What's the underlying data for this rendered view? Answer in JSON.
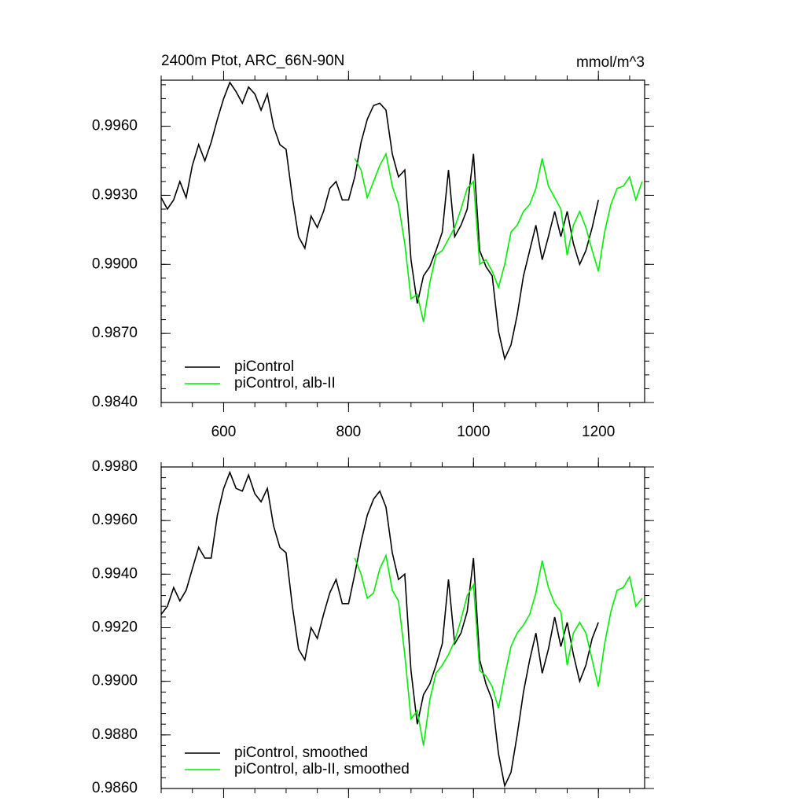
{
  "chart_data": [
    {
      "type": "line",
      "title": "2400m Ptot, ARC_66N-90N",
      "units": "mmol/m^3",
      "xlim": [
        500,
        1274
      ],
      "xticks": [
        600,
        800,
        1000,
        1200
      ],
      "ylim": [
        0.984,
        0.998
      ],
      "yticks": [
        {
          "value": 0.984,
          "label": "0.9840"
        },
        {
          "value": 0.987,
          "label": "0.9870"
        },
        {
          "value": 0.99,
          "label": "0.9900"
        },
        {
          "value": 0.993,
          "label": "0.9930"
        },
        {
          "value": 0.996,
          "label": "0.9960"
        }
      ],
      "legend": "lower left",
      "series": [
        {
          "name": "piControl",
          "color": "#000000",
          "x": [
            500,
            510,
            520,
            530,
            540,
            550,
            560,
            570,
            580,
            590,
            600,
            610,
            620,
            630,
            640,
            650,
            660,
            670,
            680,
            690,
            700,
            710,
            720,
            730,
            740,
            750,
            760,
            770,
            780,
            790,
            800,
            810,
            820,
            830,
            840,
            850,
            860,
            870,
            880,
            890,
            900,
            910,
            920,
            930,
            940,
            950,
            960,
            970,
            980,
            990,
            1000,
            1010,
            1020,
            1030,
            1040,
            1050,
            1060,
            1070,
            1080,
            1090,
            1100,
            1110,
            1120,
            1130,
            1140,
            1150,
            1160,
            1170,
            1180,
            1190,
            1200
          ],
          "values": [
            0.9929,
            0.9924,
            0.9928,
            0.9936,
            0.9929,
            0.9943,
            0.9952,
            0.9945,
            0.9953,
            0.9963,
            0.9972,
            0.9979,
            0.9975,
            0.997,
            0.9977,
            0.9974,
            0.9967,
            0.9974,
            0.996,
            0.9952,
            0.995,
            0.9929,
            0.9912,
            0.9907,
            0.9921,
            0.9916,
            0.9923,
            0.9933,
            0.9936,
            0.9928,
            0.9928,
            0.9938,
            0.9953,
            0.9963,
            0.9969,
            0.997,
            0.9967,
            0.9948,
            0.9938,
            0.9941,
            0.9902,
            0.9883,
            0.9895,
            0.9899,
            0.9906,
            0.9914,
            0.9941,
            0.9912,
            0.9917,
            0.9924,
            0.9948,
            0.9906,
            0.9899,
            0.9895,
            0.9871,
            0.9859,
            0.9865,
            0.9878,
            0.9895,
            0.9906,
            0.9917,
            0.9902,
            0.9912,
            0.9923,
            0.9912,
            0.9923,
            0.9909,
            0.99,
            0.9906,
            0.9916,
            0.9928
          ]
        },
        {
          "name": "piControl, alb-II",
          "color": "#00ee00",
          "x": [
            810,
            820,
            830,
            840,
            850,
            860,
            870,
            880,
            890,
            900,
            910,
            920,
            930,
            940,
            950,
            960,
            970,
            980,
            990,
            1000,
            1010,
            1020,
            1030,
            1040,
            1050,
            1060,
            1070,
            1080,
            1090,
            1100,
            1110,
            1120,
            1130,
            1140,
            1150,
            1160,
            1170,
            1180,
            1190,
            1200,
            1210,
            1220,
            1230,
            1240,
            1250,
            1260,
            1270
          ],
          "values": [
            0.9946,
            0.9941,
            0.9929,
            0.9936,
            0.9943,
            0.9948,
            0.9934,
            0.9926,
            0.9909,
            0.9885,
            0.9887,
            0.9875,
            0.9892,
            0.9904,
            0.9906,
            0.9911,
            0.9916,
            0.9924,
            0.9933,
            0.9936,
            0.99,
            0.9902,
            0.9897,
            0.989,
            0.99,
            0.9914,
            0.9917,
            0.9923,
            0.9926,
            0.9933,
            0.9946,
            0.9934,
            0.9929,
            0.9924,
            0.9904,
            0.9917,
            0.9923,
            0.9916,
            0.9906,
            0.9897,
            0.9914,
            0.9926,
            0.9933,
            0.9934,
            0.9938,
            0.9928,
            0.9936
          ]
        }
      ]
    },
    {
      "type": "line",
      "xlim": [
        500,
        1274
      ],
      "xticks": [
        600,
        800,
        1000,
        1200
      ],
      "ylim": [
        0.986,
        0.998
      ],
      "yticks": [
        {
          "value": 0.986,
          "label": "0.9860"
        },
        {
          "value": 0.988,
          "label": "0.9880"
        },
        {
          "value": 0.99,
          "label": "0.9900"
        },
        {
          "value": 0.992,
          "label": "0.9920"
        },
        {
          "value": 0.994,
          "label": "0.9940"
        },
        {
          "value": 0.996,
          "label": "0.9960"
        },
        {
          "value": 0.998,
          "label": "0.9980"
        }
      ],
      "legend": "lower left",
      "series": [
        {
          "name": "piControl, smoothed",
          "color": "#000000",
          "x": [
            500,
            510,
            520,
            530,
            540,
            550,
            560,
            570,
            580,
            590,
            600,
            610,
            620,
            630,
            640,
            650,
            660,
            670,
            680,
            690,
            700,
            710,
            720,
            730,
            740,
            750,
            760,
            770,
            780,
            790,
            800,
            810,
            820,
            830,
            840,
            850,
            860,
            870,
            880,
            890,
            900,
            910,
            920,
            930,
            940,
            950,
            960,
            970,
            980,
            990,
            1000,
            1010,
            1020,
            1030,
            1040,
            1050,
            1060,
            1070,
            1080,
            1090,
            1100,
            1110,
            1120,
            1130,
            1140,
            1150,
            1160,
            1170,
            1180,
            1190,
            1200
          ],
          "values": [
            0.9925,
            0.9928,
            0.9935,
            0.993,
            0.9934,
            0.9942,
            0.995,
            0.9946,
            0.9946,
            0.9962,
            0.9972,
            0.9978,
            0.9972,
            0.9971,
            0.9977,
            0.997,
            0.9967,
            0.9972,
            0.9958,
            0.995,
            0.9948,
            0.9928,
            0.9912,
            0.9908,
            0.992,
            0.9916,
            0.9925,
            0.9933,
            0.9938,
            0.9929,
            0.9929,
            0.994,
            0.9952,
            0.9962,
            0.9968,
            0.9971,
            0.9965,
            0.9948,
            0.9938,
            0.994,
            0.9904,
            0.9884,
            0.9895,
            0.9899,
            0.9906,
            0.9914,
            0.9938,
            0.9914,
            0.9918,
            0.9926,
            0.9946,
            0.9908,
            0.9899,
            0.9893,
            0.9873,
            0.9861,
            0.9866,
            0.988,
            0.9896,
            0.9908,
            0.9918,
            0.9903,
            0.9912,
            0.9924,
            0.9913,
            0.9922,
            0.991,
            0.99,
            0.9906,
            0.9916,
            0.9922
          ]
        },
        {
          "name": "piControl, alb-II, smoothed",
          "color": "#00ee00",
          "x": [
            810,
            820,
            830,
            840,
            850,
            860,
            870,
            880,
            890,
            900,
            910,
            920,
            930,
            940,
            950,
            960,
            970,
            980,
            990,
            1000,
            1010,
            1020,
            1030,
            1040,
            1050,
            1060,
            1070,
            1080,
            1090,
            1100,
            1110,
            1120,
            1130,
            1140,
            1150,
            1160,
            1170,
            1180,
            1190,
            1200,
            1210,
            1220,
            1230,
            1240,
            1250,
            1260,
            1270
          ],
          "values": [
            0.9946,
            0.994,
            0.9931,
            0.9933,
            0.9942,
            0.9947,
            0.9934,
            0.993,
            0.991,
            0.9886,
            0.9889,
            0.9876,
            0.9893,
            0.9903,
            0.9906,
            0.991,
            0.9915,
            0.9923,
            0.9932,
            0.9936,
            0.9904,
            0.9902,
            0.9898,
            0.989,
            0.9902,
            0.9913,
            0.9918,
            0.9921,
            0.9925,
            0.9933,
            0.9945,
            0.9935,
            0.9929,
            0.9926,
            0.9906,
            0.9918,
            0.9922,
            0.9918,
            0.9908,
            0.9898,
            0.9914,
            0.9926,
            0.9934,
            0.9935,
            0.9939,
            0.9928,
            0.9931
          ]
        }
      ]
    }
  ]
}
